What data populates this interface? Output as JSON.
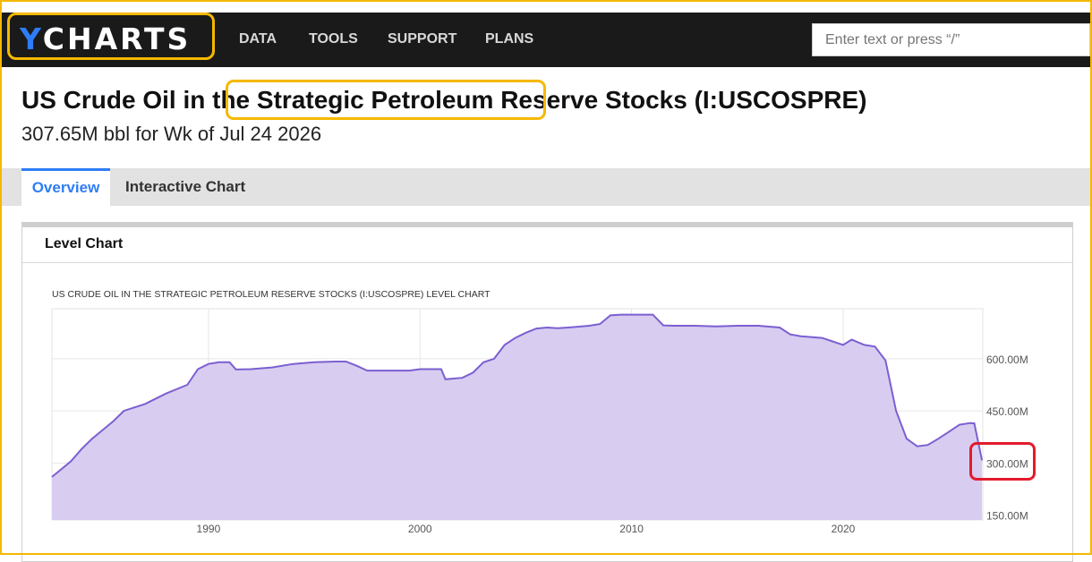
{
  "header": {
    "logo_y": "Y",
    "logo_rest": "CHARTS",
    "nav": [
      "DATA",
      "TOOLS",
      "SUPPORT",
      "PLANS"
    ],
    "search_placeholder": "Enter text or press “/”"
  },
  "page": {
    "title": "US Crude Oil in the Strategic Petroleum Reserve Stocks (I:USCOSPRE)",
    "subtitle": "307.65M bbl for Wk of Jul 24 2026"
  },
  "tabs": [
    "Overview",
    "Interactive Chart"
  ],
  "panel": {
    "title": "Level Chart"
  },
  "colors": {
    "accent": "#2f7df6",
    "highlight": "#f5b800",
    "callout": "#e21b2d",
    "line": "#7b5fd1",
    "fill": "#d8cdf0"
  },
  "chart_data": {
    "type": "area",
    "title": "US Crude Oil in the Strategic Petroleum Reserve Stocks (I:USCOSPRE) Level Chart",
    "xlabel": "",
    "ylabel": "",
    "x_ticks": [
      "1990",
      "2000",
      "2010",
      "2020"
    ],
    "y_ticks": [
      "600.00M",
      "450.00M",
      "300.00M",
      "150.00M"
    ],
    "xlim": [
      1982.6,
      2026.6
    ],
    "ylim": [
      136,
      744
    ],
    "grid": true,
    "y_axis_side": "right",
    "series": [
      {
        "unit": "M bbl",
        "x": [
          1982.6,
          1983.0,
          1983.5,
          1984.0,
          1984.5,
          1985.0,
          1985.5,
          1986.0,
          1987.0,
          1988.0,
          1989.0,
          1989.5,
          1990.0,
          1990.5,
          1991.0,
          1991.3,
          1992.0,
          1993.0,
          1994.0,
          1995.0,
          1996.0,
          1996.5,
          1997.0,
          1997.5,
          1998.0,
          1999.0,
          1999.5,
          2000.0,
          2000.5,
          2001.0,
          2001.2,
          2002.0,
          2002.5,
          2003.0,
          2003.5,
          2004.0,
          2004.5,
          2005.0,
          2005.5,
          2006.0,
          2006.5,
          2007.0,
          2008.0,
          2008.5,
          2009.0,
          2009.5,
          2010.0,
          2011.0,
          2011.5,
          2012.0,
          2013.0,
          2014.0,
          2015.0,
          2016.0,
          2017.0,
          2017.5,
          2018.0,
          2019.0,
          2019.5,
          2020.0,
          2020.4,
          2021.0,
          2021.5,
          2022.0,
          2022.5,
          2023.0,
          2023.5,
          2024.0,
          2024.5,
          2025.0,
          2025.5,
          2026.0,
          2026.2,
          2026.56
        ],
        "y": [
          260,
          280,
          305,
          340,
          370,
          395,
          420,
          450,
          470,
          500,
          525,
          570,
          585,
          590,
          590,
          569,
          570,
          575,
          585,
          590,
          592,
          592,
          580,
          566,
          566,
          566,
          566,
          570,
          570,
          570,
          541,
          545,
          560,
          590,
          600,
          640,
          660,
          675,
          687,
          690,
          688,
          690,
          695,
          700,
          725,
          727,
          727,
          727,
          696,
          695,
          695,
          693,
          695,
          695,
          690,
          670,
          665,
          660,
          650,
          640,
          655,
          640,
          635,
          595,
          450,
          370,
          348,
          352,
          370,
          390,
          410,
          415,
          414,
          307.65
        ]
      }
    ]
  }
}
